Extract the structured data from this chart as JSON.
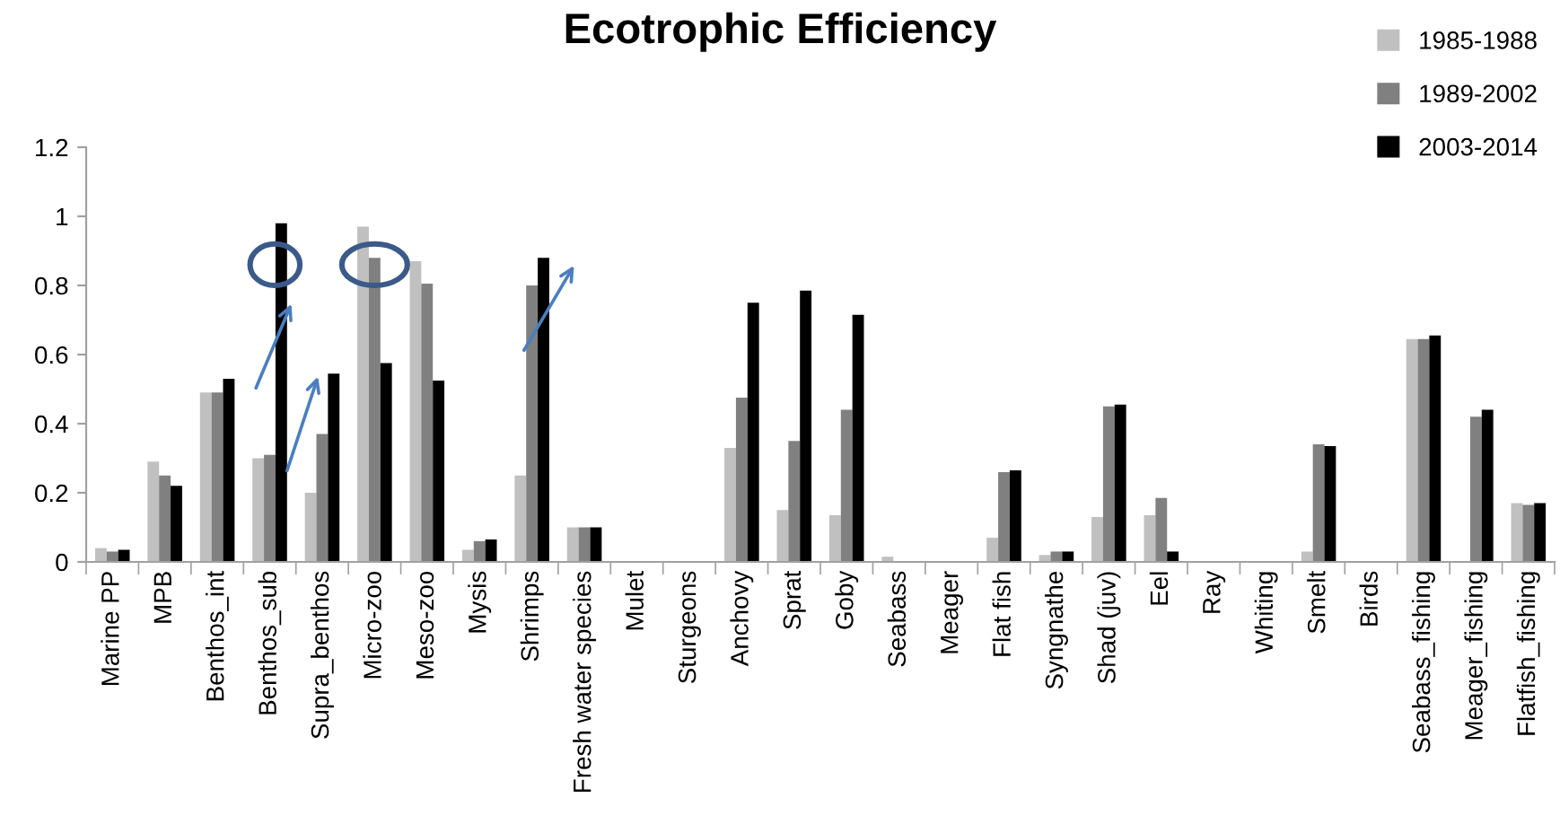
{
  "chart_data": {
    "type": "bar",
    "title": "Ecotrophic Efficiency",
    "categories": [
      "Marine PP",
      "MPB",
      "Benthos_int",
      "Benthos_sub",
      "Supra_benthos",
      "Micro-zoo",
      "Meso-zoo",
      "Mysis",
      "Shrimps",
      "Fresh water species",
      "Mulet",
      "Sturgeons",
      "Anchovy",
      "Sprat",
      "Goby",
      "Seabass",
      "Meager",
      "Flat fish",
      "Syngnathe",
      "Shad (juv)",
      "Eel",
      "Ray",
      "Whiting",
      "Smelt",
      "Birds",
      "Seabass_fishing",
      "Meager_fishing",
      "Flatfish_fishing"
    ],
    "series": [
      {
        "name": "1985-1988",
        "color": "#c0c0c0",
        "values": [
          0.04,
          0.29,
          0.49,
          0.3,
          0.2,
          0.97,
          0.87,
          0.035,
          0.25,
          0.1,
          0,
          0,
          0.33,
          0.15,
          0.135,
          0.015,
          0,
          0.07,
          0.02,
          0.13,
          0.135,
          0,
          0,
          0.03,
          0,
          0.645,
          0,
          0.17
        ]
      },
      {
        "name": "1989-2002",
        "color": "#808080",
        "values": [
          0.03,
          0.25,
          0.49,
          0.31,
          0.37,
          0.88,
          0.805,
          0.06,
          0.8,
          0.1,
          0,
          0,
          0.475,
          0.35,
          0.44,
          0,
          0,
          0.26,
          0.03,
          0.45,
          0.185,
          0,
          0,
          0.34,
          0,
          0.645,
          0.42,
          0.165
        ]
      },
      {
        "name": "2003-2014",
        "color": "#000000",
        "values": [
          0.035,
          0.22,
          0.53,
          0.98,
          0.545,
          0.575,
          0.525,
          0.065,
          0.88,
          0.1,
          0,
          0,
          0.75,
          0.785,
          0.715,
          0,
          0,
          0.265,
          0.03,
          0.455,
          0.03,
          0,
          0,
          0.335,
          0,
          0.655,
          0.44,
          0.17
        ]
      }
    ],
    "ylim": [
      0,
      1.2
    ],
    "yticks": [
      0,
      0.2,
      0.4,
      0.6,
      0.8,
      1,
      1.2
    ],
    "grid": false,
    "legend": "top right"
  }
}
